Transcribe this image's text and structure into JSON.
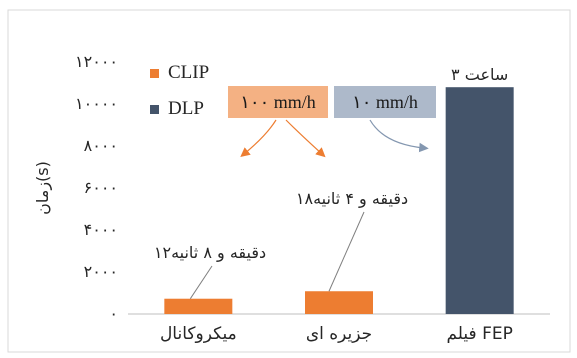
{
  "chart_data": {
    "type": "bar",
    "categories": [
      "میکروکانال",
      "جزیره ای",
      "فیلم FEP"
    ],
    "series": [
      {
        "name": "CLIP",
        "color": "#ED7D31",
        "values": [
          728,
          1084,
          null
        ]
      },
      {
        "name": "DLP",
        "color": "#44546A",
        "values": [
          null,
          null,
          10800
        ]
      }
    ],
    "bar_labels": [
      "۱۲دقیقه و ۸ ثانیه",
      "۱۸دقیقه و ۴ ثانیه",
      "۳ ساعت"
    ],
    "ylabel": "زمان(s)",
    "ylim": [
      0,
      12000
    ],
    "yticks": [
      0,
      2000,
      4000,
      6000,
      8000,
      10000,
      12000
    ],
    "ytick_labels": [
      "۰",
      "۲۰۰۰",
      "۴۰۰۰",
      "۶۰۰۰",
      "۸۰۰۰",
      "۱۰۰۰۰",
      "۱۲۰۰۰"
    ],
    "grid": false,
    "legend_position": "top-left",
    "rate_labels": [
      {
        "text": "۱۰۰ mm/h",
        "series": "CLIP",
        "fill": "#F4B183"
      },
      {
        "text": "۱۰ mm/h",
        "series": "DLP",
        "fill": "#ADB9CA"
      }
    ]
  }
}
